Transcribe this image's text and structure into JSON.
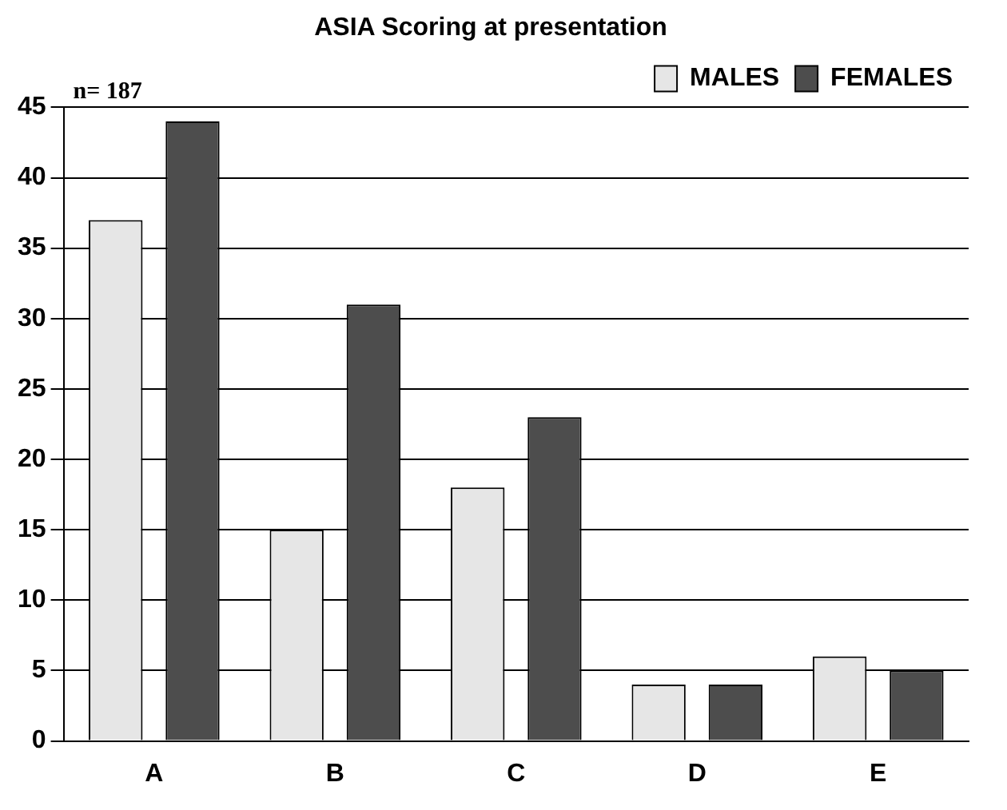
{
  "chart_data": {
    "type": "bar",
    "title": "ASIA Scoring at presentation",
    "categories": [
      "A",
      "B",
      "C",
      "D",
      "E"
    ],
    "series": [
      {
        "name": "MALES",
        "color": "#e6e6e6",
        "values": [
          37,
          15,
          18,
          4,
          6
        ]
      },
      {
        "name": "FEMALES",
        "color": "#4d4d4d",
        "values": [
          44,
          31,
          23,
          4,
          5
        ]
      }
    ],
    "ylim": [
      0,
      45
    ],
    "yticks": [
      0,
      5,
      10,
      15,
      20,
      25,
      30,
      35,
      40,
      45
    ],
    "grid": "y",
    "legend": "top right",
    "annotations": [
      "n= 187"
    ]
  }
}
